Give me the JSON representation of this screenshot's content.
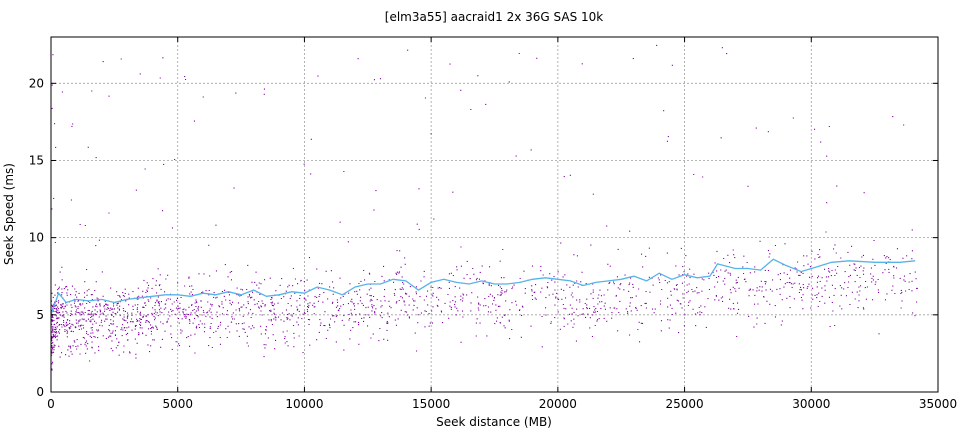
{
  "chart_data": {
    "type": "scatter",
    "title": "[elm3a55] aacraid1 2x 36G SAS 10k",
    "xlabel": "Seek distance (MB)",
    "ylabel": "Seek Speed (ms)",
    "xlim": [
      0,
      35000
    ],
    "ylim": [
      0,
      23
    ],
    "xticks": [
      0,
      5000,
      10000,
      15000,
      20000,
      25000,
      30000,
      35000
    ],
    "yticks": [
      0,
      5,
      10,
      15,
      20
    ],
    "grid": true,
    "colors": {
      "points": "#8000a0",
      "trend": "#56b4e9"
    },
    "series": [
      {
        "type": "line",
        "x": [
          0,
          300,
          600,
          1000,
          1500,
          2000,
          2500,
          3000,
          3500,
          4000,
          4500,
          5000,
          5500,
          6000,
          6500,
          7000,
          7500,
          8000,
          8500,
          9000,
          9500,
          10000,
          10500,
          11000,
          11500,
          12000,
          12500,
          13000,
          13500,
          14000,
          14500,
          15000,
          15500,
          16000,
          16500,
          17000,
          17500,
          18000,
          18500,
          19000,
          19500,
          20000,
          20500,
          21000,
          21500,
          22000,
          22500,
          23000,
          23500,
          24000,
          24500,
          25000,
          25500,
          26000,
          26300,
          27000,
          27500,
          28000,
          28500,
          29000,
          29600,
          30200,
          30800,
          31500,
          32500,
          33500,
          34100
        ],
        "y": [
          5.0,
          6.4,
          5.8,
          6.0,
          5.9,
          6.0,
          5.8,
          6.0,
          6.1,
          6.2,
          6.3,
          6.3,
          6.2,
          6.4,
          6.3,
          6.5,
          6.3,
          6.6,
          6.2,
          6.3,
          6.5,
          6.4,
          6.8,
          6.6,
          6.3,
          6.8,
          7.0,
          7.0,
          7.3,
          7.2,
          6.6,
          7.1,
          7.3,
          7.1,
          7.0,
          7.2,
          7.0,
          7.0,
          7.1,
          7.3,
          7.4,
          7.3,
          7.2,
          6.9,
          7.1,
          7.2,
          7.3,
          7.5,
          7.2,
          7.7,
          7.3,
          7.6,
          7.4,
          7.5,
          8.3,
          8.0,
          8.0,
          7.9,
          8.6,
          8.2,
          7.8,
          8.1,
          8.4,
          8.5,
          8.4,
          8.4,
          8.5
        ]
      }
    ]
  }
}
